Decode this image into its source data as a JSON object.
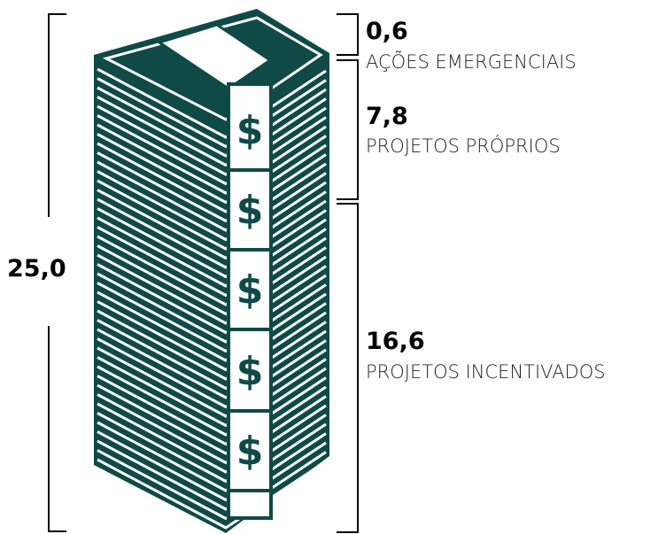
{
  "total": "25,0",
  "segments": [
    {
      "value": "0,6",
      "label": "AÇÕES EMERGENCIAIS"
    },
    {
      "value": "7,8",
      "label": "PROJETOS PRÓPRIOS"
    },
    {
      "value": "16,6",
      "label": "PROJETOS INCENTIVADOS"
    }
  ],
  "symbol": "$"
}
